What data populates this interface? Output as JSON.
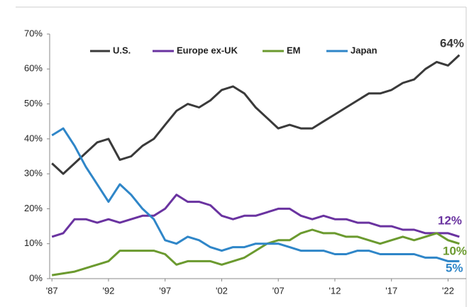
{
  "chart_data": {
    "type": "line",
    "x": [
      1987,
      1988,
      1989,
      1990,
      1991,
      1992,
      1993,
      1994,
      1995,
      1996,
      1997,
      1998,
      1999,
      2000,
      2001,
      2002,
      2003,
      2004,
      2005,
      2006,
      2007,
      2008,
      2009,
      2010,
      2011,
      2012,
      2013,
      2014,
      2015,
      2016,
      2017,
      2018,
      2019,
      2020,
      2021,
      2022,
      2023
    ],
    "series": [
      {
        "name": "U.S.",
        "color": "#3a3a3a",
        "end_label": "64%",
        "values": [
          33,
          30,
          33,
          36,
          39,
          40,
          34,
          35,
          38,
          40,
          44,
          48,
          50,
          49,
          51,
          54,
          55,
          53,
          49,
          46,
          43,
          44,
          43,
          43,
          45,
          47,
          49,
          51,
          53,
          53,
          54,
          56,
          57,
          60,
          62,
          61,
          64
        ]
      },
      {
        "name": "Europe ex-UK",
        "color": "#6a33a0",
        "end_label": "12%",
        "values": [
          12,
          13,
          17,
          17,
          16,
          17,
          16,
          17,
          18,
          18,
          20,
          24,
          22,
          22,
          21,
          18,
          17,
          18,
          18,
          19,
          20,
          20,
          18,
          17,
          18,
          17,
          17,
          16,
          16,
          15,
          15,
          14,
          14,
          13,
          13,
          13,
          12
        ]
      },
      {
        "name": "EM",
        "color": "#6b9a2f",
        "end_label": "10%",
        "values": [
          1,
          1.5,
          2,
          3,
          4,
          5,
          8,
          8,
          8,
          8,
          7,
          4,
          5,
          5,
          5,
          4,
          5,
          6,
          8,
          10,
          11,
          11,
          13,
          14,
          13,
          13,
          12,
          12,
          11,
          10,
          11,
          12,
          11,
          12,
          13,
          11,
          10
        ]
      },
      {
        "name": "Japan",
        "color": "#2f86c8",
        "end_label": "5%",
        "values": [
          41,
          43,
          38,
          32,
          27,
          22,
          27,
          24,
          20,
          17,
          11,
          10,
          12,
          11,
          9,
          8,
          9,
          9,
          10,
          10,
          10,
          9,
          8,
          8,
          8,
          7,
          7,
          8,
          8,
          7,
          7,
          7,
          7,
          6,
          6,
          5,
          5
        ]
      }
    ],
    "xlim": [
      1986.8,
      2023.6
    ],
    "xticks": [
      {
        "value": 1987,
        "label": "'87"
      },
      {
        "value": 1992,
        "label": "'92"
      },
      {
        "value": 1997,
        "label": "'97"
      },
      {
        "value": 2002,
        "label": "'02"
      },
      {
        "value": 2007,
        "label": "'07"
      },
      {
        "value": 2012,
        "label": "'12"
      },
      {
        "value": 2017,
        "label": "'17"
      },
      {
        "value": 2022,
        "label": "'22"
      }
    ],
    "ylim": [
      0,
      70
    ],
    "yticks": [
      {
        "value": 0,
        "label": "0%"
      },
      {
        "value": 10,
        "label": "10%"
      },
      {
        "value": 20,
        "label": "20%"
      },
      {
        "value": 30,
        "label": "30%"
      },
      {
        "value": 40,
        "label": "40%"
      },
      {
        "value": 50,
        "label": "50%"
      },
      {
        "value": 60,
        "label": "60%"
      },
      {
        "value": 70,
        "label": "70%"
      }
    ]
  }
}
